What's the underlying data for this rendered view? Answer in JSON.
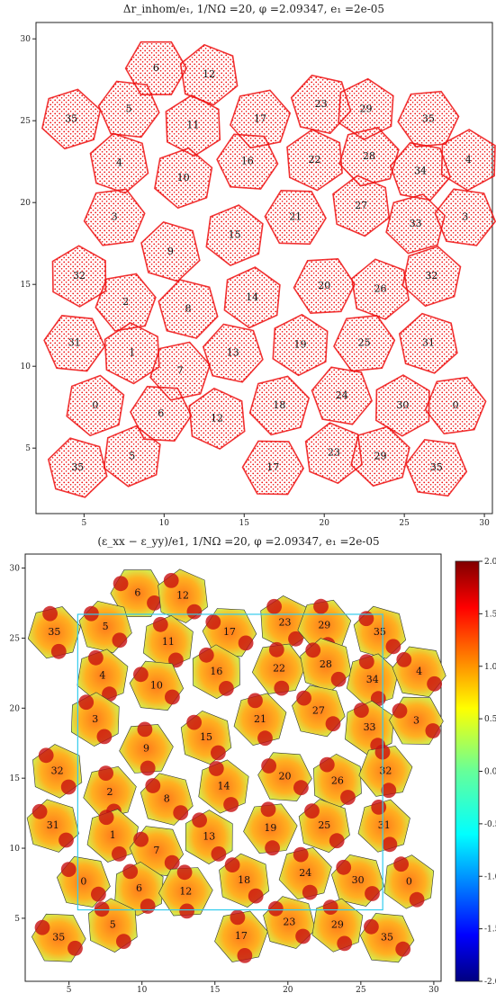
{
  "chart_data": [
    {
      "type": "scatter",
      "title": "Δr_inhom/e₁, 1/NΩ =20, φ =2.09347, e₁ =2e-05",
      "x_ticks": [
        "5",
        "10",
        "15",
        "20",
        "25",
        "30"
      ],
      "y_ticks": [
        "5",
        "10",
        "15",
        "20",
        "25",
        "30"
      ],
      "xlim": [
        2,
        30.5
      ],
      "ylim": [
        1,
        31
      ],
      "color": "#ee0000",
      "cells": [
        {
          "label": "6",
          "x": 9.5,
          "y": 28.2
        },
        {
          "label": "12",
          "x": 12.8,
          "y": 27.8
        },
        {
          "label": "35",
          "x": 4.2,
          "y": 25.1
        },
        {
          "label": "5",
          "x": 7.8,
          "y": 25.7
        },
        {
          "label": "11",
          "x": 11.8,
          "y": 24.7
        },
        {
          "label": "17",
          "x": 16,
          "y": 25.1
        },
        {
          "label": "23",
          "x": 19.8,
          "y": 26.0
        },
        {
          "label": "29",
          "x": 22.6,
          "y": 25.7
        },
        {
          "label": "35",
          "x": 26.5,
          "y": 25.1
        },
        {
          "label": "4",
          "x": 7.2,
          "y": 22.4
        },
        {
          "label": "10",
          "x": 11.2,
          "y": 21.5
        },
        {
          "label": "16",
          "x": 15.2,
          "y": 22.5
        },
        {
          "label": "22",
          "x": 19.4,
          "y": 22.6
        },
        {
          "label": "28",
          "x": 22.8,
          "y": 22.8
        },
        {
          "label": "34",
          "x": 26.0,
          "y": 21.9
        },
        {
          "label": "4",
          "x": 29.0,
          "y": 22.6
        },
        {
          "label": "3",
          "x": 6.9,
          "y": 19.1
        },
        {
          "label": "9",
          "x": 10.4,
          "y": 17.0
        },
        {
          "label": "15",
          "x": 14.4,
          "y": 18.0
        },
        {
          "label": "21",
          "x": 18.2,
          "y": 19.1
        },
        {
          "label": "27",
          "x": 22.3,
          "y": 19.8
        },
        {
          "label": "33",
          "x": 25.7,
          "y": 18.7
        },
        {
          "label": "3",
          "x": 28.8,
          "y": 19.1
        },
        {
          "label": "32",
          "x": 4.7,
          "y": 15.5
        },
        {
          "label": "2",
          "x": 7.6,
          "y": 13.9
        },
        {
          "label": "8",
          "x": 11.5,
          "y": 13.5
        },
        {
          "label": "14",
          "x": 15.5,
          "y": 14.2
        },
        {
          "label": "20",
          "x": 20.0,
          "y": 14.9
        },
        {
          "label": "26",
          "x": 23.5,
          "y": 14.7
        },
        {
          "label": "32",
          "x": 26.7,
          "y": 15.5
        },
        {
          "label": "31",
          "x": 4.4,
          "y": 11.4
        },
        {
          "label": "1",
          "x": 8.0,
          "y": 10.8
        },
        {
          "label": "7",
          "x": 11.0,
          "y": 9.7
        },
        {
          "label": "13",
          "x": 14.3,
          "y": 10.8
        },
        {
          "label": "19",
          "x": 18.5,
          "y": 11.3
        },
        {
          "label": "25",
          "x": 22.5,
          "y": 11.4
        },
        {
          "label": "31",
          "x": 26.5,
          "y": 11.4
        },
        {
          "label": "0",
          "x": 5.7,
          "y": 7.6
        },
        {
          "label": "6",
          "x": 9.8,
          "y": 7.1
        },
        {
          "label": "12",
          "x": 13.3,
          "y": 6.8
        },
        {
          "label": "18",
          "x": 17.2,
          "y": 7.6
        },
        {
          "label": "24",
          "x": 21.1,
          "y": 8.2
        },
        {
          "label": "30",
          "x": 24.9,
          "y": 7.6
        },
        {
          "label": "0",
          "x": 28.2,
          "y": 7.6
        },
        {
          "label": "35",
          "x": 4.6,
          "y": 3.8
        },
        {
          "label": "5",
          "x": 8.0,
          "y": 4.5
        },
        {
          "label": "17",
          "x": 16.8,
          "y": 3.8
        },
        {
          "label": "23",
          "x": 20.6,
          "y": 4.7
        },
        {
          "label": "29",
          "x": 23.5,
          "y": 4.5
        },
        {
          "label": "35",
          "x": 27.0,
          "y": 3.8
        }
      ]
    },
    {
      "type": "heatmap",
      "title": "(ε_xx − ε_yy)/e1, 1/NΩ =20, φ =2.09347, e₁ =2e-05",
      "x_ticks": [
        "5",
        "10",
        "15",
        "20",
        "25",
        "30"
      ],
      "y_ticks": [
        "5",
        "10",
        "15",
        "20",
        "25",
        "30"
      ],
      "xlim": [
        2,
        30.5
      ],
      "ylim": [
        0.5,
        31
      ],
      "colorbar_ticks": [
        "2.0",
        "1.5",
        "1.0",
        "0.5",
        "0.0",
        "-0.5",
        "-1.0",
        "-1.5",
        "-2.0"
      ],
      "colorbar_range": [
        -2.0,
        2.0
      ],
      "colormap": "jet",
      "box_color": "#33ccee",
      "box_data": {
        "x0": 5.6,
        "x1": 26.5,
        "y0": 5.6,
        "y1": 26.7
      },
      "cells": [
        {
          "label": "6",
          "x": 9.7,
          "y": 28.2
        },
        {
          "label": "12",
          "x": 12.8,
          "y": 28.0
        },
        {
          "label": "35",
          "x": 4.0,
          "y": 25.4
        },
        {
          "label": "5",
          "x": 7.5,
          "y": 25.8
        },
        {
          "label": "11",
          "x": 11.8,
          "y": 24.7
        },
        {
          "label": "17",
          "x": 16.0,
          "y": 25.4
        },
        {
          "label": "23",
          "x": 19.8,
          "y": 26.1
        },
        {
          "label": "29",
          "x": 22.5,
          "y": 25.9
        },
        {
          "label": "35",
          "x": 26.3,
          "y": 25.4
        },
        {
          "label": "4",
          "x": 7.3,
          "y": 22.3
        },
        {
          "label": "10",
          "x": 11.0,
          "y": 21.6
        },
        {
          "label": "16",
          "x": 15.1,
          "y": 22.6
        },
        {
          "label": "22",
          "x": 19.4,
          "y": 22.8
        },
        {
          "label": "28",
          "x": 22.6,
          "y": 23.1
        },
        {
          "label": "34",
          "x": 25.8,
          "y": 22.0
        },
        {
          "label": "4",
          "x": 29.0,
          "y": 22.6
        },
        {
          "label": "3",
          "x": 6.8,
          "y": 19.2
        },
        {
          "label": "9",
          "x": 10.3,
          "y": 17.1
        },
        {
          "label": "15",
          "x": 14.4,
          "y": 17.9
        },
        {
          "label": "21",
          "x": 18.1,
          "y": 19.2
        },
        {
          "label": "27",
          "x": 22.1,
          "y": 19.8
        },
        {
          "label": "33",
          "x": 25.6,
          "y": 18.6
        },
        {
          "label": "3",
          "x": 28.8,
          "y": 19.1
        },
        {
          "label": "32",
          "x": 4.2,
          "y": 15.5
        },
        {
          "label": "2",
          "x": 7.8,
          "y": 14.0
        },
        {
          "label": "8",
          "x": 11.7,
          "y": 13.5
        },
        {
          "label": "14",
          "x": 15.6,
          "y": 14.4
        },
        {
          "label": "20",
          "x": 19.8,
          "y": 15.1
        },
        {
          "label": "26",
          "x": 23.4,
          "y": 14.8
        },
        {
          "label": "32",
          "x": 26.7,
          "y": 15.5
        },
        {
          "label": "31",
          "x": 3.9,
          "y": 11.6
        },
        {
          "label": "1",
          "x": 8.0,
          "y": 10.9
        },
        {
          "label": "7",
          "x": 11.0,
          "y": 9.8
        },
        {
          "label": "13",
          "x": 14.6,
          "y": 10.8
        },
        {
          "label": "19",
          "x": 18.8,
          "y": 11.4
        },
        {
          "label": "25",
          "x": 22.5,
          "y": 11.6
        },
        {
          "label": "31",
          "x": 26.6,
          "y": 11.6
        },
        {
          "label": "0",
          "x": 6.0,
          "y": 7.6
        },
        {
          "label": "6",
          "x": 9.8,
          "y": 7.1
        },
        {
          "label": "12",
          "x": 13.0,
          "y": 6.9
        },
        {
          "label": "18",
          "x": 17.0,
          "y": 7.7
        },
        {
          "label": "24",
          "x": 21.2,
          "y": 8.2
        },
        {
          "label": "30",
          "x": 24.8,
          "y": 7.7
        },
        {
          "label": "0",
          "x": 28.3,
          "y": 7.6
        },
        {
          "label": "35",
          "x": 4.3,
          "y": 3.6
        },
        {
          "label": "5",
          "x": 8.0,
          "y": 4.5
        },
        {
          "label": "17",
          "x": 16.8,
          "y": 3.7
        },
        {
          "label": "23",
          "x": 20.1,
          "y": 4.7
        },
        {
          "label": "29",
          "x": 23.4,
          "y": 4.5
        },
        {
          "label": "35",
          "x": 26.8,
          "y": 3.6
        }
      ]
    }
  ]
}
